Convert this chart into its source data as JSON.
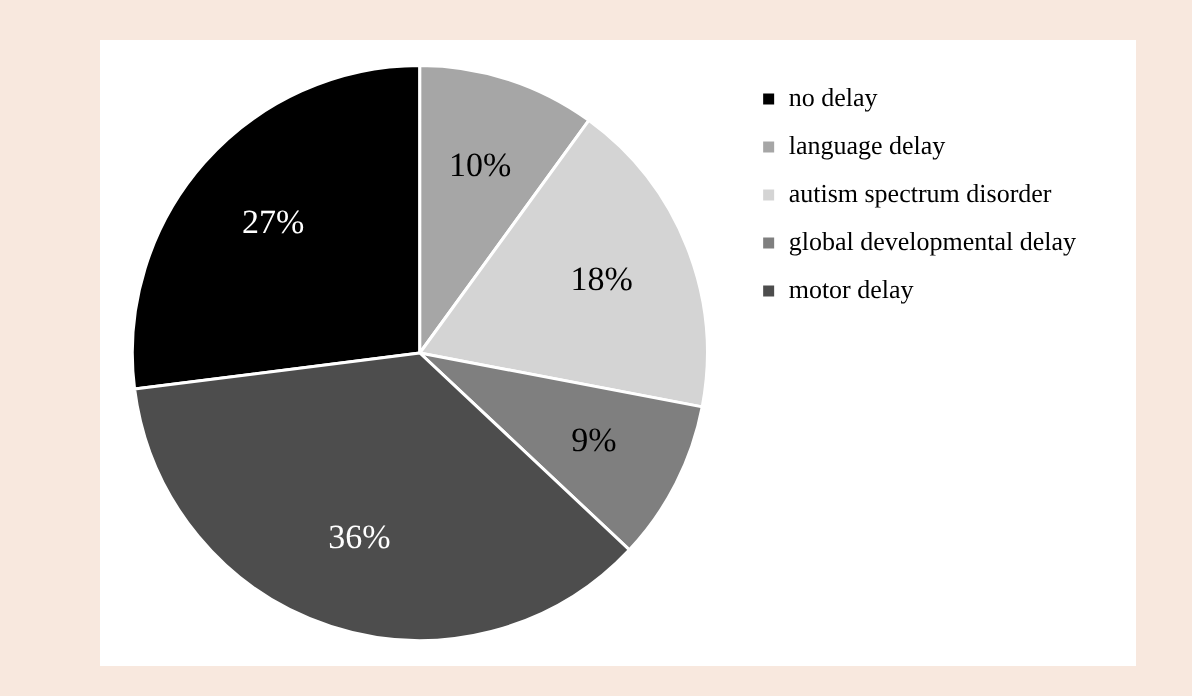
{
  "chart_data": {
    "type": "pie",
    "categories": [
      "no delay",
      "language delay",
      "autism spectrum disorder",
      "global developmental delay",
      "motor delay"
    ],
    "values": [
      27,
      10,
      18,
      9,
      36
    ],
    "colors": [
      "#000000",
      "#a6a6a6",
      "#d4d4d4",
      "#7f7f7f",
      "#4d4d4d"
    ],
    "value_labels": [
      "27%",
      "10%",
      "18%",
      "9%",
      "36%"
    ],
    "legend": "top right"
  }
}
